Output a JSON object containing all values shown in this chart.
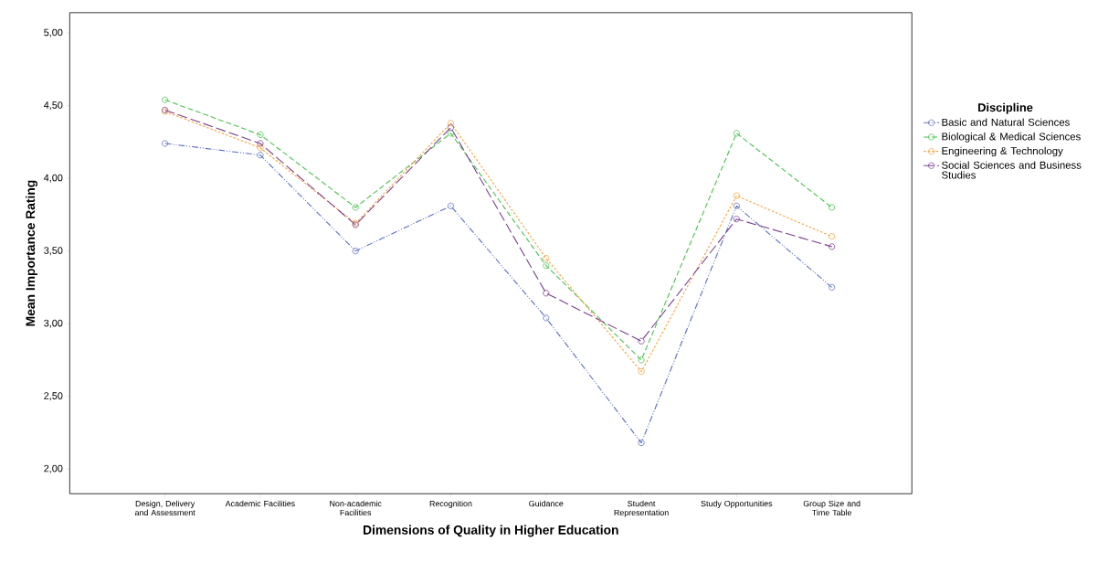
{
  "chart_data": {
    "type": "line",
    "xlabel": "Dimensions of Quality in Higher Education",
    "ylabel": "Mean Importance Rating",
    "legend_title": "Discipline",
    "categories": [
      "Design, Delivery and Assessment",
      "Academic Facilities",
      "Non-academic Facilities",
      "Recognition",
      "Guidance",
      "Student Representation",
      "Study Opportunities",
      "Group Size and Time Table"
    ],
    "series": [
      {
        "name": "Basic and Natural Sciences",
        "color": "#5a6fc0",
        "line_style": "dashdotdotted",
        "values": [
          4.24,
          4.16,
          3.5,
          3.81,
          3.04,
          2.18,
          3.81,
          3.25
        ]
      },
      {
        "name": "Biological & Medical Sciences",
        "color": "#47c24c",
        "line_style": "dashed",
        "values": [
          4.54,
          4.3,
          3.8,
          4.31,
          3.4,
          2.75,
          4.31,
          3.8
        ]
      },
      {
        "name": "Engineering & Technology",
        "color": "#f9a03a",
        "line_style": "dotted",
        "values": [
          4.46,
          4.21,
          3.69,
          4.38,
          3.45,
          2.67,
          3.88,
          3.6
        ]
      },
      {
        "name": "Social Sciences and Business Studies",
        "color": "#7c3f8e",
        "line_style": "long dashed",
        "values": [
          4.47,
          4.24,
          3.68,
          4.35,
          3.21,
          2.88,
          3.72,
          3.53
        ]
      }
    ],
    "ylim": [
      1.83,
      5.14
    ],
    "yticks": [
      {
        "value": 2,
        "label": "2,00"
      },
      {
        "value": 2.5,
        "label": "2,50"
      },
      {
        "value": 3,
        "label": "3,00"
      },
      {
        "value": 3.5,
        "label": "3,50"
      },
      {
        "value": 4,
        "label": "4,00"
      },
      {
        "value": 4.5,
        "label": "4,50"
      },
      {
        "value": 5,
        "label": "5,00"
      }
    ],
    "marker": "circle",
    "legend": "right",
    "grid": false
  }
}
